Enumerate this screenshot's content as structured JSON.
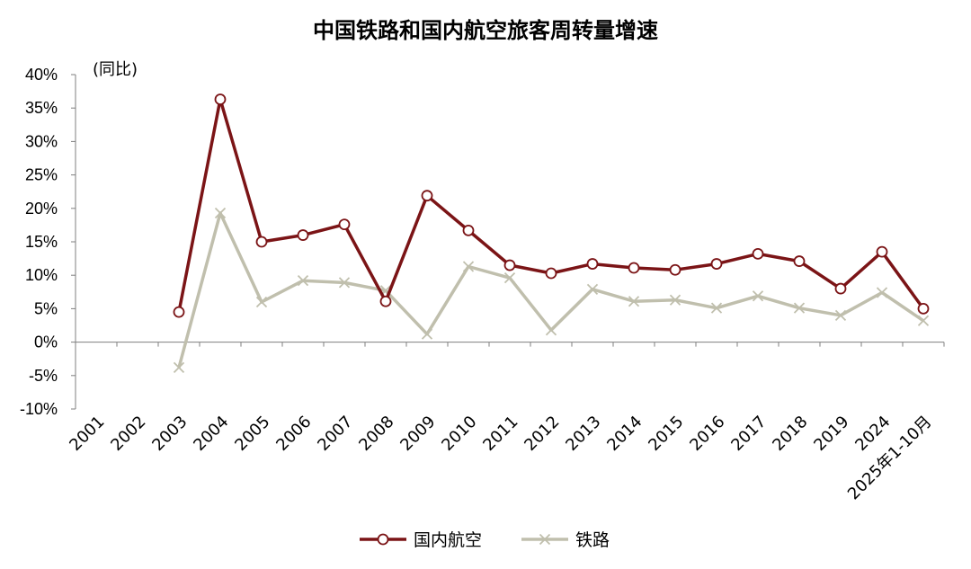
{
  "chart_data": {
    "type": "line",
    "title": "中国铁路和国内航空旅客周转量增速",
    "unit_note": "(同比)",
    "categories": [
      "2001",
      "2002",
      "2003",
      "2004",
      "2005",
      "2006",
      "2007",
      "2008",
      "2009",
      "2010",
      "2011",
      "2012",
      "2013",
      "2014",
      "2015",
      "2016",
      "2017",
      "2018",
      "2019",
      "2024",
      "2025年1-10月"
    ],
    "yticks": [
      "40%",
      "35%",
      "30%",
      "25%",
      "20%",
      "15%",
      "10%",
      "5%",
      "0%",
      "-5%",
      "-10%"
    ],
    "ylim": [
      -10,
      40
    ],
    "series": [
      {
        "name": "国内航空",
        "color": "#7b1416",
        "marker": "circle",
        "values": [
          null,
          null,
          4.5,
          36.3,
          15.0,
          16.0,
          17.6,
          6.1,
          21.9,
          16.7,
          11.5,
          10.3,
          11.7,
          11.1,
          10.8,
          11.7,
          13.2,
          12.1,
          8.0,
          13.5,
          5.0
        ]
      },
      {
        "name": "铁路",
        "color": "#c0bfad",
        "marker": "x",
        "values": [
          null,
          null,
          -3.8,
          19.3,
          6.0,
          9.2,
          8.9,
          7.7,
          1.2,
          11.3,
          9.6,
          1.8,
          7.9,
          6.1,
          6.3,
          5.1,
          6.9,
          5.1,
          4.0,
          7.4,
          3.2
        ]
      }
    ]
  }
}
